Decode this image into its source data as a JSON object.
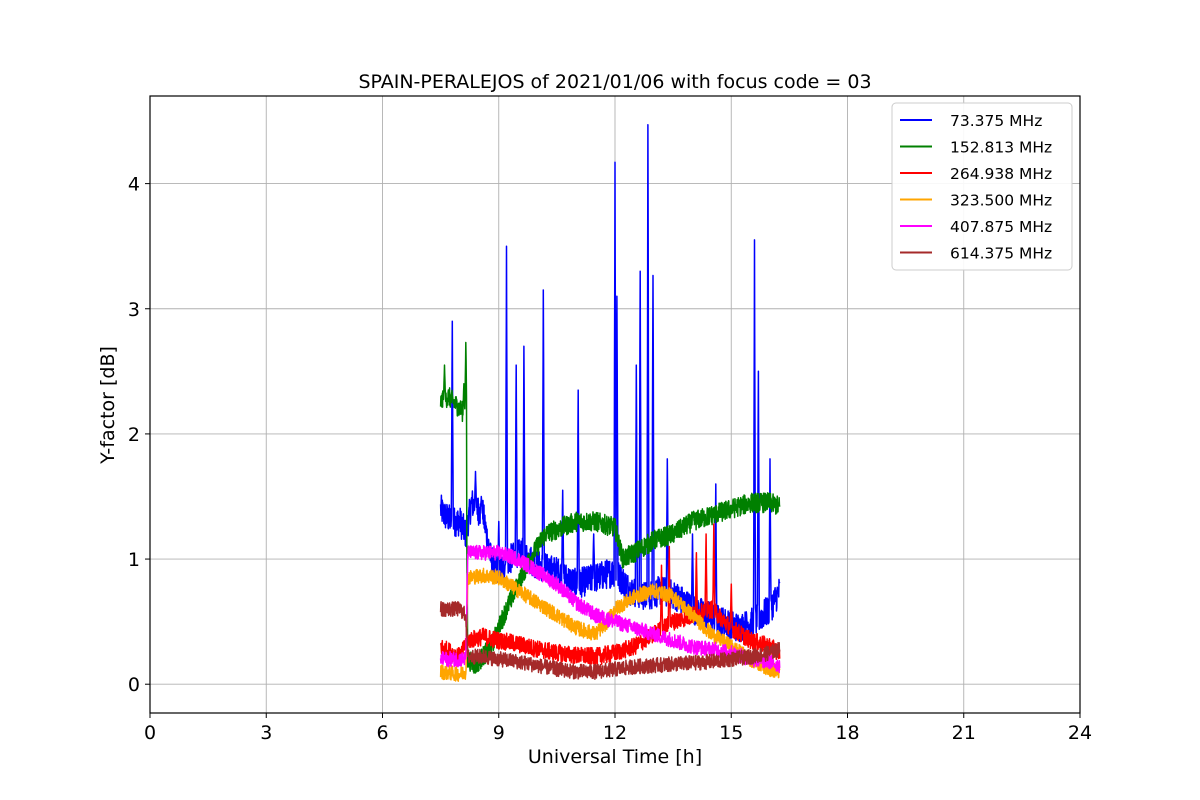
{
  "chart_data": {
    "type": "line",
    "title": "SPAIN-PERALEJOS of 2021/01/06 with focus code = 03",
    "xlabel": "Universal Time [h]",
    "ylabel": "Y-factor [dB]",
    "xlim": [
      0,
      24
    ],
    "ylim": [
      -0.23,
      4.7
    ],
    "xticks": [
      0,
      3,
      6,
      9,
      12,
      15,
      18,
      21,
      24
    ],
    "yticks": [
      0,
      1,
      2,
      3,
      4
    ],
    "xtick_labels": [
      "0",
      "3",
      "6",
      "9",
      "12",
      "15",
      "18",
      "21",
      "24"
    ],
    "ytick_labels": [
      "0",
      "1",
      "2",
      "3",
      "4"
    ],
    "grid": true,
    "legend_position": "top-right",
    "series": [
      {
        "name": " 73.375 MHz",
        "color": "#0000ff",
        "base": [
          [
            7.5,
            1.4
          ],
          [
            7.6,
            1.35
          ],
          [
            7.8,
            1.3
          ],
          [
            8.0,
            1.3
          ],
          [
            8.15,
            1.2
          ],
          [
            8.3,
            1.45
          ],
          [
            8.6,
            1.35
          ],
          [
            8.8,
            1.0
          ],
          [
            9.0,
            0.9
          ],
          [
            9.3,
            1.0
          ],
          [
            9.6,
            1.05
          ],
          [
            10.0,
            0.95
          ],
          [
            10.5,
            0.9
          ],
          [
            11.0,
            0.8
          ],
          [
            11.5,
            0.85
          ],
          [
            12.0,
            0.9
          ],
          [
            12.4,
            0.75
          ],
          [
            12.8,
            0.7
          ],
          [
            13.2,
            0.75
          ],
          [
            13.6,
            0.7
          ],
          [
            14.0,
            0.6
          ],
          [
            14.4,
            0.55
          ],
          [
            14.8,
            0.5
          ],
          [
            15.2,
            0.45
          ],
          [
            15.6,
            0.5
          ],
          [
            16.0,
            0.6
          ],
          [
            16.25,
            0.75
          ]
        ],
        "noise": 0.12,
        "spikes": [
          [
            7.8,
            2.9
          ],
          [
            8.4,
            1.7
          ],
          [
            8.55,
            1.5
          ],
          [
            9.0,
            1.3
          ],
          [
            9.2,
            3.5
          ],
          [
            9.45,
            2.55
          ],
          [
            9.65,
            2.7
          ],
          [
            10.15,
            3.15
          ],
          [
            10.65,
            1.55
          ],
          [
            11.05,
            2.35
          ],
          [
            11.45,
            1.2
          ],
          [
            12.0,
            4.17
          ],
          [
            12.05,
            3.1
          ],
          [
            12.55,
            2.55
          ],
          [
            12.65,
            3.3
          ],
          [
            12.85,
            4.47
          ],
          [
            12.98,
            3.4
          ],
          [
            13.35,
            1.8
          ],
          [
            14.0,
            1.2
          ],
          [
            14.6,
            1.6
          ],
          [
            15.6,
            3.55
          ],
          [
            15.7,
            2.5
          ],
          [
            16.0,
            1.8
          ]
        ]
      },
      {
        "name": "152.813 MHz",
        "color": "#008000",
        "base": [
          [
            7.5,
            2.25
          ],
          [
            7.7,
            2.3
          ],
          [
            8.0,
            2.2
          ],
          [
            8.15,
            2.15
          ],
          [
            8.2,
            0.2
          ],
          [
            8.4,
            0.15
          ],
          [
            8.8,
            0.3
          ],
          [
            9.2,
            0.6
          ],
          [
            9.5,
            0.8
          ],
          [
            9.8,
            1.0
          ],
          [
            10.2,
            1.2
          ],
          [
            10.6,
            1.25
          ],
          [
            11.0,
            1.3
          ],
          [
            11.5,
            1.3
          ],
          [
            12.0,
            1.25
          ],
          [
            12.2,
            1.0
          ],
          [
            12.5,
            1.05
          ],
          [
            13.0,
            1.15
          ],
          [
            13.5,
            1.2
          ],
          [
            14.0,
            1.3
          ],
          [
            14.5,
            1.35
          ],
          [
            15.0,
            1.4
          ],
          [
            15.5,
            1.45
          ],
          [
            16.0,
            1.45
          ],
          [
            16.25,
            1.42
          ]
        ],
        "noise": 0.08,
        "spikes": [
          [
            7.6,
            2.55
          ],
          [
            8.15,
            2.73
          ],
          [
            8.1,
            2.4
          ]
        ]
      },
      {
        "name": "264.938 MHz",
        "color": "#ff0000",
        "base": [
          [
            7.5,
            0.3
          ],
          [
            7.8,
            0.25
          ],
          [
            8.0,
            0.22
          ],
          [
            8.2,
            0.35
          ],
          [
            8.6,
            0.38
          ],
          [
            9.0,
            0.35
          ],
          [
            9.5,
            0.32
          ],
          [
            10.0,
            0.28
          ],
          [
            10.5,
            0.25
          ],
          [
            11.0,
            0.23
          ],
          [
            11.5,
            0.22
          ],
          [
            12.0,
            0.25
          ],
          [
            12.5,
            0.3
          ],
          [
            13.0,
            0.4
          ],
          [
            13.5,
            0.5
          ],
          [
            14.0,
            0.55
          ],
          [
            14.5,
            0.6
          ],
          [
            15.0,
            0.45
          ],
          [
            15.5,
            0.35
          ],
          [
            16.0,
            0.3
          ],
          [
            16.25,
            0.25
          ]
        ],
        "noise": 0.07,
        "spikes": [
          [
            13.2,
            0.95
          ],
          [
            13.4,
            1.1
          ],
          [
            14.1,
            1.05
          ],
          [
            14.35,
            1.2
          ],
          [
            14.55,
            1.28
          ],
          [
            15.0,
            0.8
          ]
        ]
      },
      {
        "name": "323.500 MHz",
        "color": "#ffa500",
        "base": [
          [
            7.5,
            0.1
          ],
          [
            8.0,
            0.08
          ],
          [
            8.15,
            0.1
          ],
          [
            8.2,
            0.85
          ],
          [
            8.6,
            0.87
          ],
          [
            9.0,
            0.85
          ],
          [
            9.5,
            0.75
          ],
          [
            10.0,
            0.65
          ],
          [
            10.5,
            0.55
          ],
          [
            11.0,
            0.45
          ],
          [
            11.5,
            0.4
          ],
          [
            11.8,
            0.5
          ],
          [
            12.0,
            0.6
          ],
          [
            12.5,
            0.7
          ],
          [
            13.0,
            0.75
          ],
          [
            13.5,
            0.7
          ],
          [
            14.0,
            0.55
          ],
          [
            14.5,
            0.4
          ],
          [
            15.0,
            0.3
          ],
          [
            15.5,
            0.2
          ],
          [
            16.0,
            0.12
          ],
          [
            16.25,
            0.1
          ]
        ],
        "noise": 0.06,
        "spikes": []
      },
      {
        "name": "407.875 MHz",
        "color": "#ff00ff",
        "base": [
          [
            7.5,
            0.2
          ],
          [
            8.0,
            0.2
          ],
          [
            8.15,
            0.2
          ],
          [
            8.2,
            1.05
          ],
          [
            8.6,
            1.05
          ],
          [
            9.0,
            1.05
          ],
          [
            9.5,
            1.0
          ],
          [
            10.0,
            0.9
          ],
          [
            10.5,
            0.8
          ],
          [
            11.0,
            0.65
          ],
          [
            11.5,
            0.55
          ],
          [
            12.0,
            0.5
          ],
          [
            12.5,
            0.45
          ],
          [
            13.0,
            0.4
          ],
          [
            13.5,
            0.35
          ],
          [
            14.0,
            0.3
          ],
          [
            14.5,
            0.28
          ],
          [
            15.0,
            0.25
          ],
          [
            15.5,
            0.2
          ],
          [
            16.0,
            0.18
          ],
          [
            16.25,
            0.15
          ]
        ],
        "noise": 0.06,
        "spikes": []
      },
      {
        "name": "614.375 MHz",
        "color": "#a52a2a",
        "base": [
          [
            7.5,
            0.6
          ],
          [
            8.0,
            0.6
          ],
          [
            8.15,
            0.55
          ],
          [
            8.2,
            0.22
          ],
          [
            8.6,
            0.22
          ],
          [
            9.0,
            0.2
          ],
          [
            9.5,
            0.18
          ],
          [
            10.0,
            0.15
          ],
          [
            10.5,
            0.12
          ],
          [
            11.0,
            0.1
          ],
          [
            11.5,
            0.1
          ],
          [
            12.0,
            0.12
          ],
          [
            12.5,
            0.14
          ],
          [
            13.0,
            0.15
          ],
          [
            13.5,
            0.16
          ],
          [
            14.0,
            0.17
          ],
          [
            14.5,
            0.18
          ],
          [
            15.0,
            0.2
          ],
          [
            15.5,
            0.22
          ],
          [
            16.0,
            0.25
          ],
          [
            16.25,
            0.28
          ]
        ],
        "noise": 0.06,
        "spikes": []
      }
    ]
  }
}
